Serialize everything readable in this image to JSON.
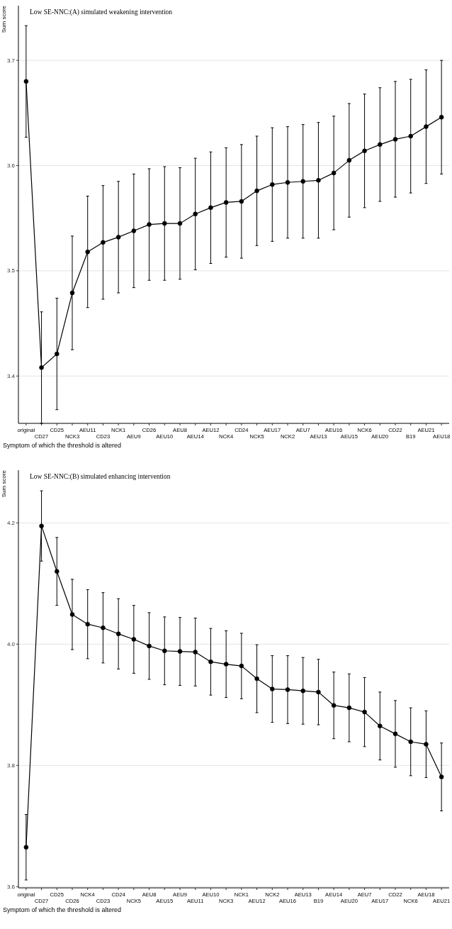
{
  "chart_data": [
    {
      "type": "line",
      "title": "Low SE-NNC:(A) simulated weakening intervention",
      "xlabel": "Symptom of which the threshold is altered",
      "ylabel": "Sum score",
      "categories": [
        "original",
        "CD27",
        "CD25",
        "NCK3",
        "AEU11",
        "CD23",
        "NCK1",
        "AEU9",
        "CD26",
        "AEU10",
        "AEU8",
        "AEU14",
        "AEU12",
        "NCK4",
        "CD24",
        "NCK5",
        "AEU17",
        "NCK2",
        "AEU7",
        "AEU13",
        "AEU16",
        "AEU15",
        "NCK6",
        "AEU20",
        "CD22",
        "B19",
        "AEU21",
        "AEU18"
      ],
      "series": [
        {
          "color": "#000000",
          "values": [
            3.68,
            3.408,
            3.421,
            3.479,
            3.518,
            3.527,
            3.532,
            3.538,
            3.544,
            3.545,
            3.545,
            3.554,
            3.56,
            3.565,
            3.566,
            3.576,
            3.582,
            3.584,
            3.585,
            3.586,
            3.593,
            3.605,
            3.614,
            3.62,
            3.625,
            3.628,
            3.637,
            3.646
          ],
          "errors": [
            0.053,
            0.053,
            0.053,
            0.054,
            0.053,
            0.054,
            0.053,
            0.054,
            0.053,
            0.054,
            0.053,
            0.053,
            0.053,
            0.052,
            0.054,
            0.052,
            0.054,
            0.053,
            0.054,
            0.055,
            0.054,
            0.054,
            0.054,
            0.054,
            0.055,
            0.054,
            0.054,
            0.054
          ]
        }
      ],
      "ylim": [
        3.355,
        3.752
      ],
      "yticks": [
        3.4,
        3.5,
        3.6,
        3.7
      ],
      "grid": "y",
      "marker": "circle",
      "line_style": "solid"
    },
    {
      "type": "line",
      "title": "Low SE-NNC:(B) simulated enhancing intervention",
      "xlabel": "Symptom of which the threshold is altered",
      "ylabel": "Sum score",
      "categories": [
        "original",
        "CD27",
        "CD25",
        "CD26",
        "NCK4",
        "CD23",
        "CD24",
        "NCK5",
        "AEU8",
        "AEU15",
        "AEU9",
        "AEU11",
        "AEU10",
        "NCK3",
        "NCK1",
        "AEU12",
        "NCK2",
        "AEU16",
        "AEU13",
        "B19",
        "AEU14",
        "AEU20",
        "AEU7",
        "AEU17",
        "CD22",
        "NCK6",
        "AEU18",
        "AEU21"
      ],
      "series": [
        {
          "color": "#000000",
          "values": [
            3.665,
            4.195,
            4.12,
            4.049,
            4.033,
            4.027,
            4.017,
            4.008,
            3.997,
            3.989,
            3.988,
            3.987,
            3.971,
            3.967,
            3.964,
            3.943,
            3.926,
            3.925,
            3.923,
            3.921,
            3.899,
            3.895,
            3.888,
            3.865,
            3.852,
            3.839,
            3.835,
            3.781
          ],
          "errors": [
            0.054,
            0.058,
            0.056,
            0.058,
            0.057,
            0.058,
            0.058,
            0.056,
            0.055,
            0.056,
            0.056,
            0.056,
            0.055,
            0.055,
            0.054,
            0.056,
            0.055,
            0.056,
            0.055,
            0.054,
            0.055,
            0.056,
            0.057,
            0.056,
            0.055,
            0.056,
            0.055,
            0.056
          ]
        }
      ],
      "ylim": [
        3.598,
        4.287
      ],
      "yticks": [
        3.6,
        3.8,
        {
          "value": 4,
          "label": "4.0"
        },
        4.2
      ],
      "grid": "y",
      "marker": "circle",
      "line_style": "solid"
    }
  ]
}
